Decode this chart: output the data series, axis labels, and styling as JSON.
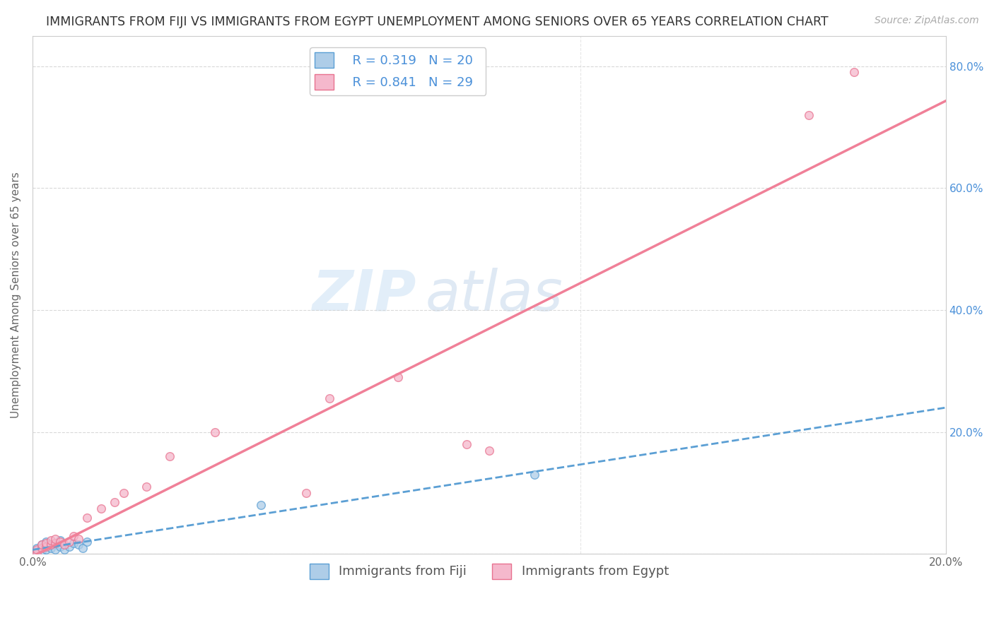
{
  "title": "IMMIGRANTS FROM FIJI VS IMMIGRANTS FROM EGYPT UNEMPLOYMENT AMONG SENIORS OVER 65 YEARS CORRELATION CHART",
  "source": "Source: ZipAtlas.com",
  "ylabel": "Unemployment Among Seniors over 65 years",
  "xlim": [
    0.0,
    0.2
  ],
  "ylim": [
    0.0,
    0.85
  ],
  "xticks": [
    0.0,
    0.04,
    0.08,
    0.12,
    0.16,
    0.2
  ],
  "xtick_labels": [
    "0.0%",
    "",
    "",
    "",
    "",
    "20.0%"
  ],
  "yticks_right": [
    0.2,
    0.4,
    0.6,
    0.8
  ],
  "ytick_labels_right": [
    "20.0%",
    "40.0%",
    "60.0%",
    "80.0%"
  ],
  "fiji_color": "#aecde8",
  "fiji_edge_color": "#5b9fd4",
  "egypt_color": "#f5b8cc",
  "egypt_edge_color": "#e8728f",
  "fiji_R": 0.319,
  "fiji_N": 20,
  "egypt_R": 0.841,
  "egypt_N": 29,
  "fiji_line_color": "#5b9fd4",
  "egypt_line_color": "#f08098",
  "legend_label_fiji": "Immigrants from Fiji",
  "legend_label_egypt": "Immigrants from Egypt",
  "watermark_zip": "ZIP",
  "watermark_atlas": "atlas",
  "background_color": "#ffffff",
  "grid_color": "#d0d0d0",
  "fiji_scatter_x": [
    0.001,
    0.001,
    0.002,
    0.002,
    0.003,
    0.003,
    0.004,
    0.004,
    0.005,
    0.005,
    0.006,
    0.006,
    0.007,
    0.008,
    0.009,
    0.01,
    0.011,
    0.012,
    0.05,
    0.11
  ],
  "fiji_scatter_y": [
    0.005,
    0.01,
    0.005,
    0.015,
    0.008,
    0.02,
    0.01,
    0.015,
    0.008,
    0.018,
    0.012,
    0.022,
    0.008,
    0.012,
    0.018,
    0.015,
    0.01,
    0.02,
    0.08,
    0.13
  ],
  "egypt_scatter_x": [
    0.001,
    0.001,
    0.002,
    0.002,
    0.003,
    0.003,
    0.004,
    0.004,
    0.005,
    0.005,
    0.006,
    0.007,
    0.008,
    0.009,
    0.01,
    0.012,
    0.015,
    0.018,
    0.02,
    0.025,
    0.03,
    0.04,
    0.06,
    0.065,
    0.08,
    0.095,
    0.1,
    0.17,
    0.18
  ],
  "egypt_scatter_y": [
    0.002,
    0.008,
    0.01,
    0.015,
    0.012,
    0.018,
    0.015,
    0.022,
    0.018,
    0.025,
    0.02,
    0.015,
    0.02,
    0.03,
    0.025,
    0.06,
    0.075,
    0.085,
    0.1,
    0.11,
    0.16,
    0.2,
    0.1,
    0.255,
    0.29,
    0.18,
    0.17,
    0.72,
    0.79
  ],
  "title_fontsize": 12.5,
  "source_fontsize": 10,
  "axis_label_fontsize": 11,
  "tick_fontsize": 11,
  "legend_fontsize": 13,
  "marker_size": 70,
  "marker_alpha": 0.75
}
